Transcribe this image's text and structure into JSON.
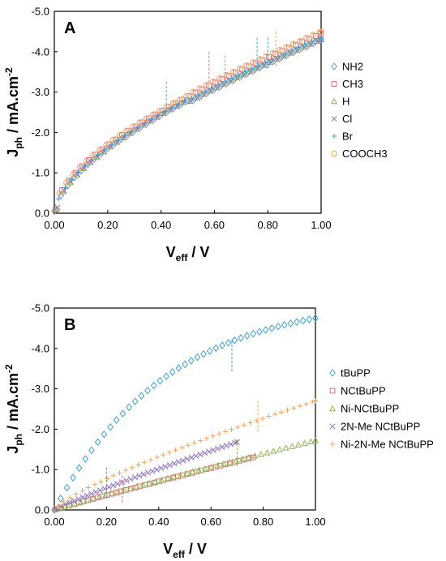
{
  "chart_data": [
    {
      "type": "scatter",
      "panel_label": "A",
      "xlabel": {
        "main": "V",
        "sub": "eff",
        "rest": " / V"
      },
      "ylabel": {
        "main": "J",
        "sub": "ph",
        "mid": " / mA.cm",
        "sup": "-2"
      },
      "xlim": [
        0,
        1
      ],
      "ylim": [
        0,
        -5
      ],
      "y_axis_inverted": true,
      "xticks": [
        "0.00",
        "0.20",
        "0.40",
        "0.60",
        "0.80",
        "1.00"
      ],
      "yticks": [
        "0.0",
        "-1.0",
        "-2.0",
        "-3.0",
        "-4.0",
        "-5.0"
      ],
      "grid": false,
      "legend_position": "right",
      "series": [
        {
          "name": "NH2",
          "color": "#6d93c8",
          "marker": "diamond",
          "offset": 0.15,
          "xmax": 1.0
        },
        {
          "name": "CH3",
          "color": "#e06c77",
          "marker": "square",
          "offset": 0.0,
          "xmax": 1.0
        },
        {
          "name": "H",
          "color": "#8bb84c",
          "marker": "triangle",
          "offset": 0.14,
          "xmax": 1.0
        },
        {
          "name": "Cl",
          "color": "#8a6fbf",
          "marker": "x",
          "offset": 0.16,
          "xmax": 1.0
        },
        {
          "name": "Br",
          "color": "#3ea0d8",
          "marker": "plus",
          "offset": 0.1,
          "xmax": 1.0
        },
        {
          "name": "COOCH3",
          "color": "#f2a35b",
          "marker": "circle",
          "offset": -0.05,
          "xmax": 1.0
        }
      ],
      "error_bars": [
        {
          "x": 0.42,
          "y": -2.85,
          "err": 0.4,
          "color": "#3ea0d8"
        },
        {
          "x": 0.58,
          "y": -3.6,
          "err": 0.4,
          "color": "#e06c77"
        },
        {
          "x": 0.64,
          "y": -3.55,
          "err": 0.35,
          "color": "#8bb84c"
        },
        {
          "x": 0.76,
          "y": -4.0,
          "err": 0.35,
          "color": "#3ea0d8"
        },
        {
          "x": 0.8,
          "y": -3.95,
          "err": 0.4,
          "color": "#3ea0d8"
        },
        {
          "x": 0.83,
          "y": -4.05,
          "err": 0.45,
          "color": "#f2a35b"
        }
      ]
    },
    {
      "type": "scatter",
      "panel_label": "B",
      "xlabel": {
        "main": "V",
        "sub": "eff",
        "rest": " / V"
      },
      "ylabel": {
        "main": "J",
        "sub": "ph",
        "mid": " / mA.cm",
        "sup": "-2"
      },
      "xlim": [
        0,
        1
      ],
      "ylim": [
        0,
        -5
      ],
      "y_axis_inverted": true,
      "xticks": [
        "0.00",
        "0.20",
        "0.40",
        "0.60",
        "0.80",
        "1.00"
      ],
      "yticks": [
        "0.0",
        "-1.0",
        "-2.0",
        "-3.0",
        "-4.0",
        "-5.0"
      ],
      "grid": false,
      "legend_position": "right",
      "series": [
        {
          "name": "tBuPP",
          "color": "#3e9fd6",
          "marker": "diamond",
          "xmax": 1.0,
          "y_end": -4.75
        },
        {
          "name": "NCtBuPP",
          "color": "#e06c77",
          "marker": "square",
          "xmax": 0.76,
          "y_end": -1.3
        },
        {
          "name": "Ni-NCtBuPP",
          "color": "#8bb84c",
          "marker": "triangle",
          "xmax": 1.0,
          "y_end": -1.72
        },
        {
          "name": "2N-Me NCtBuPP",
          "color": "#8a6fbf",
          "marker": "x",
          "xmax": 0.7,
          "y_end": -1.68
        },
        {
          "name": "Ni-2N-Me NCtBuPP",
          "color": "#f2a35b",
          "marker": "plus",
          "xmax": 1.0,
          "y_end": -2.7
        }
      ],
      "error_bars": [
        {
          "x": 0.2,
          "y": -0.65,
          "err": 0.4,
          "color": "#8a6fbf"
        },
        {
          "x": 0.26,
          "y": -0.5,
          "err": 0.35,
          "color": "#e06c77"
        },
        {
          "x": 0.68,
          "y": -3.8,
          "err": 0.4,
          "color": "#3e9fd6"
        },
        {
          "x": 0.7,
          "y": -1.4,
          "err": 0.35,
          "color": "#8bb84c"
        },
        {
          "x": 0.78,
          "y": -2.3,
          "err": 0.4,
          "color": "#f2a35b"
        }
      ]
    }
  ]
}
